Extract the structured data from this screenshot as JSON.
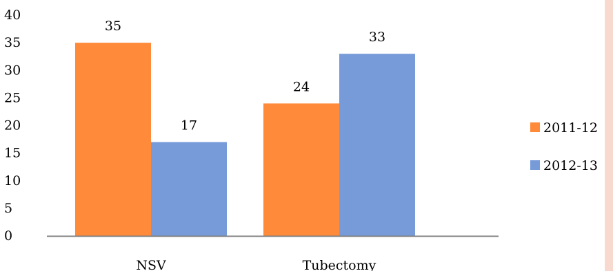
{
  "chart_data": {
    "type": "bar",
    "categories": [
      "NSV",
      "Tubectomy"
    ],
    "series": [
      {
        "name": "2011-12",
        "values": [
          35,
          24
        ],
        "color": "#FF8A3A"
      },
      {
        "name": "2012-13",
        "values": [
          17,
          33
        ],
        "color": "#779BD8"
      }
    ],
    "data_labels": [
      [
        "35",
        "24"
      ],
      [
        "17",
        "33"
      ]
    ],
    "title": "",
    "xlabel": "",
    "ylabel": "",
    "ylim": [
      0,
      40
    ],
    "yticks": [
      0,
      5,
      10,
      15,
      20,
      25,
      30,
      35,
      40
    ],
    "grid": false,
    "legend_position": "right"
  },
  "colors": {
    "axis": "#808080",
    "side_strip": "#F7D9CF"
  }
}
